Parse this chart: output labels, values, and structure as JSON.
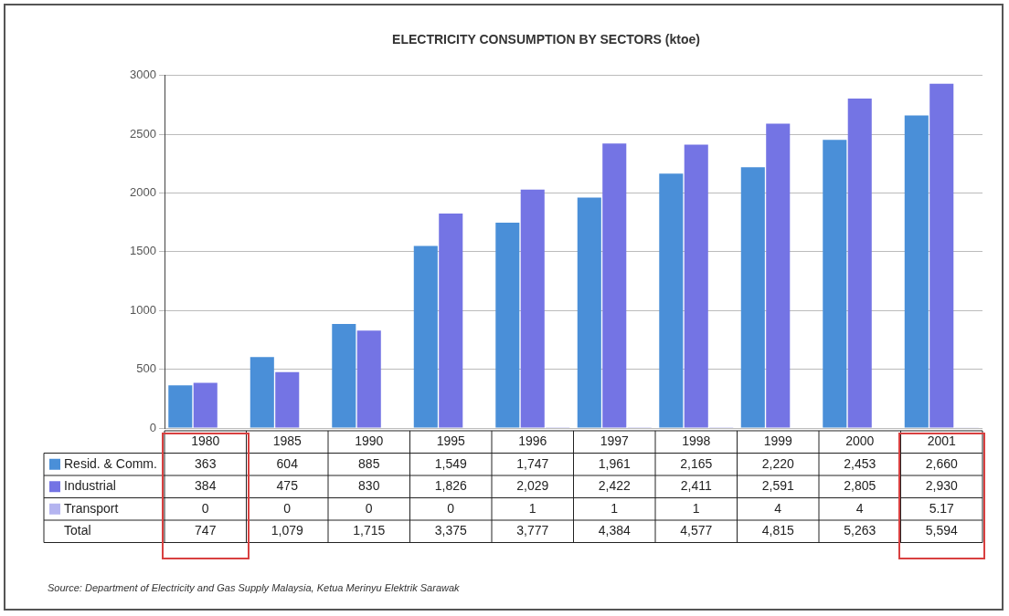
{
  "chart_data": {
    "type": "bar",
    "title": "ELECTRICITY CONSUMPTION BY SECTORS (ktoe)",
    "categories": [
      "1980",
      "1985",
      "1990",
      "1995",
      "1996",
      "1997",
      "1998",
      "1999",
      "2000",
      "2001"
    ],
    "series": [
      {
        "name": "Resid. & Comm.",
        "color": "#4a8fd8",
        "values": [
          363,
          604,
          885,
          1549,
          1747,
          1961,
          2165,
          2220,
          2453,
          2660
        ],
        "value_labels": [
          "363",
          "604",
          "885",
          "1,549",
          "1,747",
          "1,961",
          "2,165",
          "2,220",
          "2,453",
          "2,660"
        ]
      },
      {
        "name": "Industrial",
        "color": "#7474e4",
        "values": [
          384,
          475,
          830,
          1826,
          2029,
          2422,
          2411,
          2591,
          2805,
          2930
        ],
        "value_labels": [
          "384",
          "475",
          "830",
          "1,826",
          "2,029",
          "2,422",
          "2,411",
          "2,591",
          "2,805",
          "2,930"
        ]
      },
      {
        "name": "Transport",
        "color": "#b4b4f0",
        "values": [
          0,
          0,
          0,
          0,
          1,
          1,
          1,
          4,
          4,
          5.17
        ],
        "value_labels": [
          "0",
          "0",
          "0",
          "0",
          "1",
          "1",
          "1",
          "4",
          "4",
          "5.17"
        ]
      }
    ],
    "ylim": [
      0,
      3000
    ],
    "yticks": [
      0,
      500,
      1000,
      1500,
      2000,
      2500,
      3000
    ],
    "grid": "y",
    "legend": "bottom",
    "annotations": [
      "Total",
      "747",
      "1,079",
      "1,715",
      "3,375",
      "3,777",
      "4,384",
      "4,577",
      "4,815",
      "5,263",
      "5,594",
      "Source: Department of Electricity and Gas Supply Malaysia, Ketua Merinyu Elektrik Sarawak"
    ]
  }
}
